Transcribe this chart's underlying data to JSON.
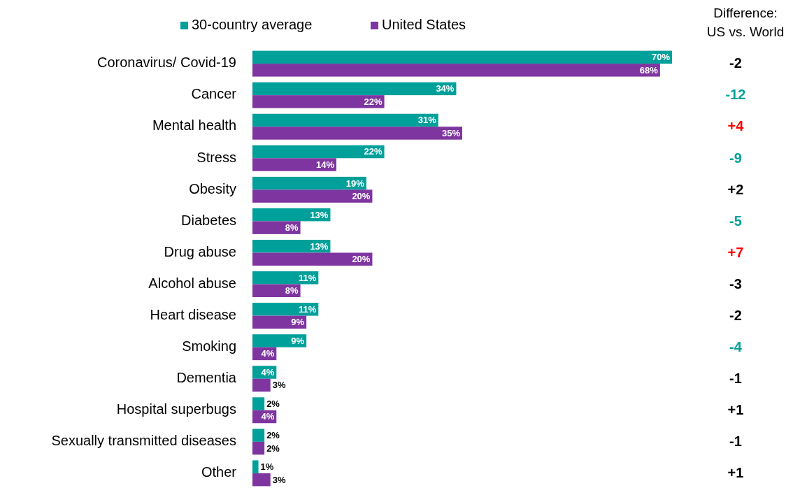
{
  "chart_data": {
    "type": "bar",
    "orientation": "horizontal",
    "legend": "top",
    "categories": [
      "Coronavirus/ Covid-19",
      "Cancer",
      "Mental health",
      "Stress",
      "Obesity",
      "Diabetes",
      "Drug abuse",
      "Alcohol abuse",
      "Heart disease",
      "Smoking",
      "Dementia",
      "Hospital superbugs",
      "Sexually transmitted diseases",
      "Other"
    ],
    "series": [
      {
        "name": "30-country average",
        "color": "#00a09a",
        "values": [
          70,
          34,
          31,
          22,
          19,
          13,
          13,
          11,
          11,
          9,
          4,
          2,
          2,
          1
        ],
        "value_labels": [
          "70%",
          "34%",
          "31%",
          "22%",
          "19%",
          "13%",
          "13%",
          "11%",
          "11%",
          "9%",
          "4%",
          "2%",
          "2%",
          "1%"
        ]
      },
      {
        "name": "United States",
        "color": "#7f35a0",
        "values": [
          68,
          22,
          35,
          14,
          20,
          8,
          20,
          8,
          9,
          4,
          3,
          4,
          2,
          3
        ],
        "value_labels": [
          "68%",
          "22%",
          "35%",
          "14%",
          "20%",
          "8%",
          "20%",
          "8%",
          "9%",
          "4%",
          "3%",
          "4%",
          "2%",
          "3%"
        ]
      }
    ],
    "annotations": [
      "Difference:\nUS vs. World",
      "-2",
      "-12",
      "+4",
      "-9",
      "+2",
      "-5",
      "+7",
      "-3",
      "-2",
      "-4",
      "-1",
      "+1",
      "-1",
      "+1"
    ]
  }
}
